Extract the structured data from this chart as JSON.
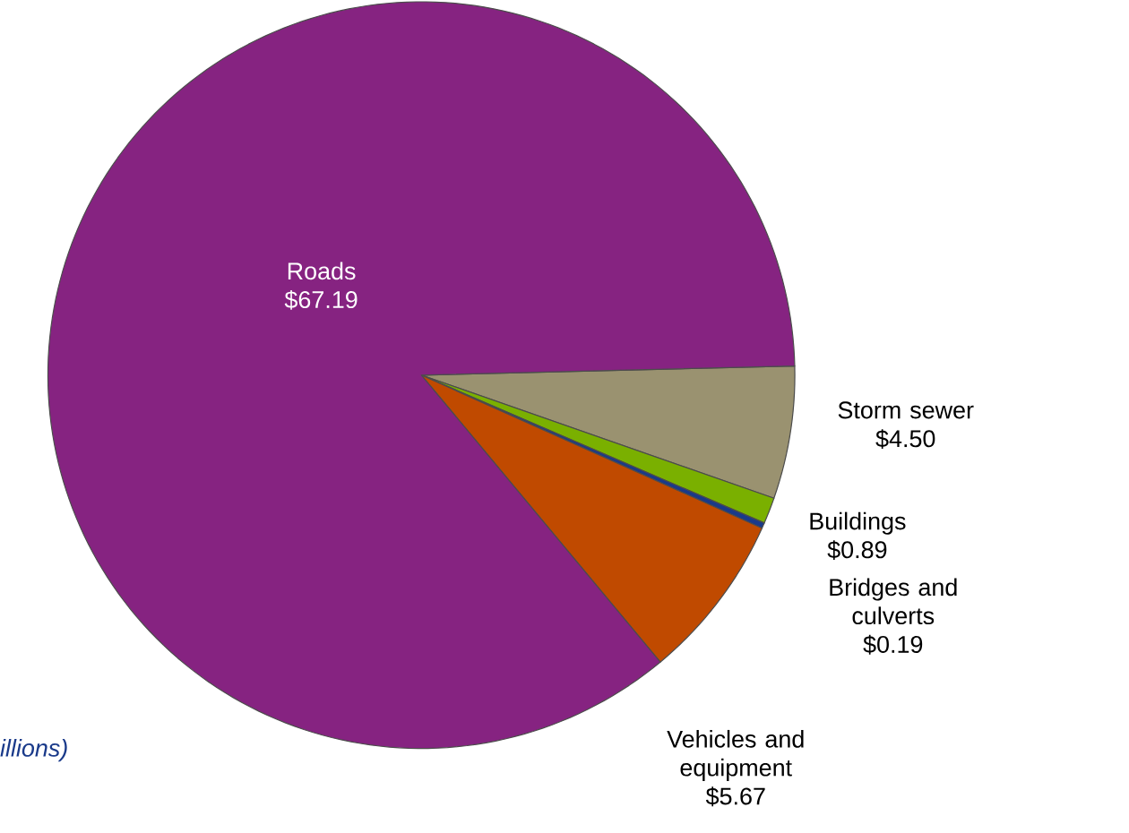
{
  "chart_data": {
    "type": "pie",
    "categories": [
      "Storm sewer",
      "Buildings",
      "Bridges and culverts",
      "Vehicles and equipment",
      "Roads"
    ],
    "values": [
      4.5,
      0.89,
      0.19,
      5.67,
      67.19
    ],
    "value_labels": [
      "$4.50",
      "$0.89",
      "$0.19",
      "$5.67",
      "$67.19"
    ],
    "colors": [
      "#9a9270",
      "#7ab000",
      "#1a3a8a",
      "#c04a00",
      "#862381"
    ],
    "annotations": [
      "illions)"
    ]
  }
}
